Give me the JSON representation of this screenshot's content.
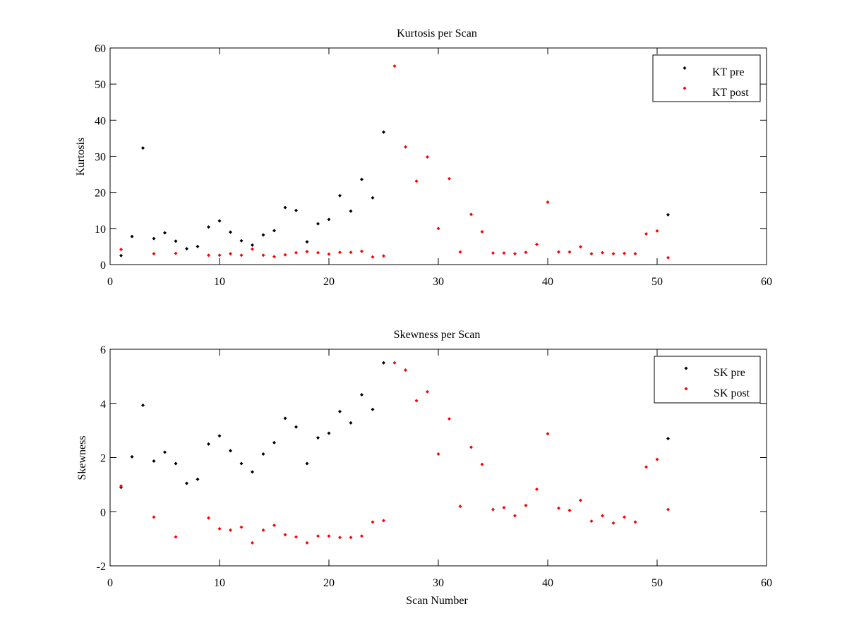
{
  "chart_data": [
    {
      "type": "scatter",
      "title": "Kurtosis per Scan",
      "xlabel": "",
      "ylabel": "Kurtosis",
      "xlim": [
        0,
        60
      ],
      "ylim": [
        0,
        60
      ],
      "xticks": [
        0,
        10,
        20,
        30,
        40,
        50,
        60
      ],
      "yticks": [
        0,
        10,
        20,
        30,
        40,
        50,
        60
      ],
      "grid": false,
      "legend_position": "top-right",
      "series": [
        {
          "name": "KT pre",
          "color": "#000000",
          "points": [
            [
              1,
              2.5
            ],
            [
              2,
              7.8
            ],
            [
              3,
              32.3
            ],
            [
              4,
              7.2
            ],
            [
              5,
              8.8
            ],
            [
              6,
              6.5
            ],
            [
              7,
              4.4
            ],
            [
              8,
              5.0
            ],
            [
              9,
              10.4
            ],
            [
              10,
              12.1
            ],
            [
              11,
              9.0
            ],
            [
              12,
              6.6
            ],
            [
              13,
              5.4
            ],
            [
              14,
              8.2
            ],
            [
              15,
              9.4
            ],
            [
              16,
              15.8
            ],
            [
              17,
              15.0
            ],
            [
              18,
              6.3
            ],
            [
              19,
              11.3
            ],
            [
              20,
              12.5
            ],
            [
              21,
              19.1
            ],
            [
              22,
              14.8
            ],
            [
              23,
              23.6
            ],
            [
              24,
              18.5
            ],
            [
              25,
              36.7
            ],
            [
              51,
              13.8
            ]
          ]
        },
        {
          "name": "KT post",
          "color": "#ff0000",
          "points": [
            [
              1,
              4.2
            ],
            [
              4,
              3.0
            ],
            [
              6,
              3.1
            ],
            [
              9,
              2.6
            ],
            [
              10,
              2.6
            ],
            [
              11,
              3.0
            ],
            [
              12,
              2.6
            ],
            [
              13,
              4.3
            ],
            [
              14,
              2.6
            ],
            [
              15,
              2.2
            ],
            [
              16,
              2.7
            ],
            [
              17,
              3.3
            ],
            [
              18,
              3.6
            ],
            [
              19,
              3.3
            ],
            [
              20,
              2.9
            ],
            [
              21,
              3.4
            ],
            [
              22,
              3.4
            ],
            [
              23,
              3.7
            ],
            [
              24,
              2.1
            ],
            [
              25,
              2.4
            ],
            [
              26,
              55.0
            ],
            [
              27,
              32.6
            ],
            [
              28,
              23.1
            ],
            [
              29,
              29.8
            ],
            [
              30,
              10.0
            ],
            [
              31,
              23.8
            ],
            [
              32,
              3.5
            ],
            [
              33,
              13.9
            ],
            [
              34,
              9.1
            ],
            [
              35,
              3.2
            ],
            [
              36,
              3.2
            ],
            [
              37,
              3.0
            ],
            [
              38,
              3.4
            ],
            [
              39,
              5.6
            ],
            [
              40,
              17.3
            ],
            [
              41,
              3.5
            ],
            [
              42,
              3.5
            ],
            [
              43,
              4.9
            ],
            [
              44,
              3.0
            ],
            [
              45,
              3.3
            ],
            [
              46,
              3.0
            ],
            [
              47,
              3.1
            ],
            [
              48,
              3.0
            ],
            [
              49,
              8.5
            ],
            [
              50,
              9.3
            ],
            [
              51,
              1.9
            ]
          ]
        }
      ]
    },
    {
      "type": "scatter",
      "title": "Skewness per Scan",
      "xlabel": "Scan Number",
      "ylabel": "Skewness",
      "xlim": [
        0,
        60
      ],
      "ylim": [
        -2,
        6
      ],
      "xticks": [
        0,
        10,
        20,
        30,
        40,
        50,
        60
      ],
      "yticks": [
        -2,
        0,
        2,
        4,
        6
      ],
      "grid": false,
      "legend_position": "top-right",
      "series": [
        {
          "name": "SK pre",
          "color": "#000000",
          "points": [
            [
              1,
              0.9
            ],
            [
              2,
              2.03
            ],
            [
              3,
              3.93
            ],
            [
              4,
              1.87
            ],
            [
              5,
              2.2
            ],
            [
              6,
              1.78
            ],
            [
              7,
              1.05
            ],
            [
              8,
              1.2
            ],
            [
              9,
              2.5
            ],
            [
              10,
              2.8
            ],
            [
              11,
              2.25
            ],
            [
              12,
              1.78
            ],
            [
              13,
              1.47
            ],
            [
              14,
              2.13
            ],
            [
              15,
              2.55
            ],
            [
              16,
              3.45
            ],
            [
              17,
              3.13
            ],
            [
              18,
              1.78
            ],
            [
              19,
              2.73
            ],
            [
              20,
              2.9
            ],
            [
              21,
              3.7
            ],
            [
              22,
              3.28
            ],
            [
              23,
              4.32
            ],
            [
              24,
              3.78
            ],
            [
              25,
              5.5
            ],
            [
              51,
              2.7
            ]
          ]
        },
        {
          "name": "SK post",
          "color": "#ff0000",
          "points": [
            [
              1,
              0.95
            ],
            [
              4,
              -0.2
            ],
            [
              6,
              -0.93
            ],
            [
              9,
              -0.23
            ],
            [
              10,
              -0.63
            ],
            [
              11,
              -0.68
            ],
            [
              12,
              -0.57
            ],
            [
              13,
              -1.15
            ],
            [
              14,
              -0.68
            ],
            [
              15,
              -0.5
            ],
            [
              16,
              -0.85
            ],
            [
              17,
              -0.93
            ],
            [
              18,
              -1.15
            ],
            [
              19,
              -0.9
            ],
            [
              20,
              -0.9
            ],
            [
              21,
              -0.95
            ],
            [
              22,
              -0.95
            ],
            [
              23,
              -0.9
            ],
            [
              24,
              -0.38
            ],
            [
              25,
              -0.33
            ],
            [
              26,
              5.5
            ],
            [
              27,
              5.23
            ],
            [
              28,
              4.1
            ],
            [
              29,
              4.43
            ],
            [
              30,
              2.13
            ],
            [
              31,
              3.43
            ],
            [
              32,
              0.2
            ],
            [
              33,
              2.38
            ],
            [
              34,
              1.75
            ],
            [
              35,
              0.08
            ],
            [
              36,
              0.15
            ],
            [
              37,
              -0.15
            ],
            [
              38,
              0.23
            ],
            [
              39,
              0.83
            ],
            [
              40,
              2.88
            ],
            [
              41,
              0.13
            ],
            [
              42,
              0.05
            ],
            [
              43,
              0.42
            ],
            [
              44,
              -0.35
            ],
            [
              45,
              -0.15
            ],
            [
              46,
              -0.42
            ],
            [
              47,
              -0.2
            ],
            [
              48,
              -0.38
            ],
            [
              49,
              1.65
            ],
            [
              50,
              1.93
            ],
            [
              51,
              0.08
            ]
          ]
        }
      ]
    }
  ]
}
